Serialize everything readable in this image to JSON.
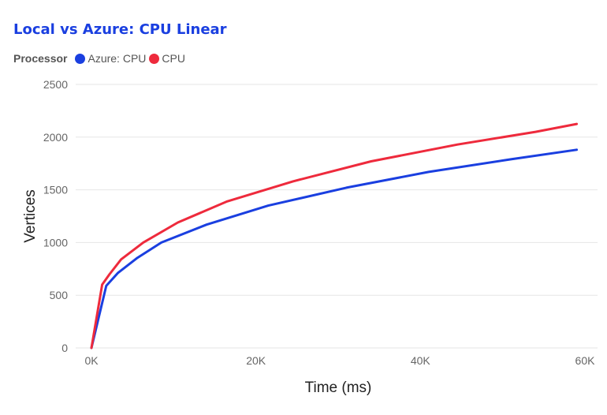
{
  "chart_data": {
    "type": "line",
    "title": "Local vs Azure: CPU Linear",
    "legend_title": "Processor",
    "legend_position": "top-left",
    "xlabel": "Time (ms)",
    "ylabel": "Vertices",
    "xlim": [
      0,
      60000
    ],
    "ylim": [
      0,
      2500
    ],
    "x_ticks": [
      0,
      20000,
      40000,
      60000
    ],
    "x_tick_labels": [
      "0K",
      "20K",
      "40K",
      "60K"
    ],
    "y_ticks": [
      0,
      500,
      1000,
      1500,
      2000,
      2500
    ],
    "y_tick_labels": [
      "0",
      "500",
      "1000",
      "1500",
      "2000",
      "2500"
    ],
    "grid": true,
    "series": [
      {
        "name": "Azure: CPU",
        "color": "#1a3fe0",
        "points": [
          [
            0,
            0
          ],
          [
            1800,
            590
          ],
          [
            3200,
            710
          ],
          [
            5500,
            850
          ],
          [
            8500,
            1000
          ],
          [
            14000,
            1170
          ],
          [
            21500,
            1350
          ],
          [
            31000,
            1520
          ],
          [
            41000,
            1670
          ],
          [
            51000,
            1790
          ],
          [
            59000,
            1880
          ]
        ]
      },
      {
        "name": "CPU",
        "color": "#ee2a3c",
        "points": [
          [
            0,
            0
          ],
          [
            1300,
            600
          ],
          [
            2200,
            700
          ],
          [
            3600,
            840
          ],
          [
            6300,
            1000
          ],
          [
            10500,
            1190
          ],
          [
            16500,
            1390
          ],
          [
            24500,
            1580
          ],
          [
            34000,
            1770
          ],
          [
            44500,
            1930
          ],
          [
            54000,
            2050
          ],
          [
            59000,
            2125
          ]
        ]
      }
    ]
  }
}
